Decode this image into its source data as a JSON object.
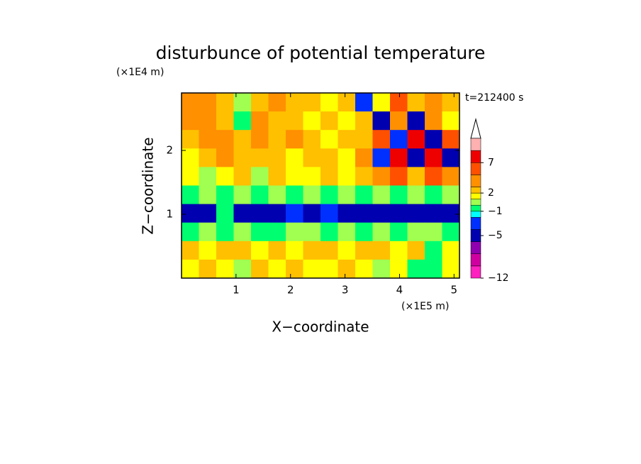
{
  "chart_data": {
    "type": "contour",
    "title": "disturbunce of potential temperature",
    "y_unit": "(×1E4 m)",
    "x_unit": "(×1E5 m)",
    "time_label": "t=212400 s",
    "xlabel": "X−coordinate",
    "ylabel": "Z−coordinate",
    "xlim": [
      0,
      5.1
    ],
    "ylim": [
      0,
      2.9
    ],
    "xticks": [
      1,
      2,
      3,
      4,
      5
    ],
    "yticks": [
      1,
      2
    ],
    "colorbar": {
      "levels": [
        -12,
        -10,
        -8,
        -6,
        -4,
        -2,
        -1,
        0,
        1,
        2,
        3,
        5,
        7,
        9,
        11
      ],
      "colors": [
        "#ff20c0",
        "#d000a0",
        "#9000b0",
        "#0000b0",
        "#0030ff",
        "#00ffff",
        "#00ff70",
        "#a0ff50",
        "#ffff00",
        "#ffc000",
        "#ff9000",
        "#ff5000",
        "#ee0000",
        "#ffb0b0"
      ],
      "ticks": [
        {
          "value": -12,
          "label": "−12"
        },
        {
          "value": -5,
          "label": "−5"
        },
        {
          "value": -1,
          "label": "−1"
        },
        2,
        7
      ]
    },
    "field": [
      [
        4,
        3,
        2,
        0,
        2,
        3,
        2,
        2,
        1,
        2,
        -4,
        1,
        5,
        2,
        4,
        2
      ],
      [
        3,
        4,
        2,
        -1,
        3,
        2,
        2,
        1,
        2,
        1,
        2,
        -5,
        4,
        -5,
        3,
        1
      ],
      [
        2,
        3,
        4,
        2,
        3,
        2,
        3,
        2,
        1,
        2,
        2,
        5,
        -4,
        7,
        -5,
        6
      ],
      [
        1,
        2,
        3,
        2,
        2,
        2,
        1,
        2,
        2,
        1,
        3,
        -3,
        7,
        -5,
        7,
        -5
      ],
      [
        1,
        0,
        1,
        2,
        0,
        2,
        1,
        1,
        2,
        1,
        2,
        3,
        5,
        2,
        5,
        3
      ],
      [
        -1,
        0,
        -1,
        0,
        -1,
        0,
        -1,
        0,
        -1,
        0,
        -1,
        0,
        -1,
        0,
        -1,
        0
      ],
      [
        -5,
        -5,
        -1,
        -5,
        -5,
        -5,
        -3,
        -5,
        -3,
        -5,
        -5,
        -5,
        -5,
        -5,
        -5,
        -5
      ],
      [
        -1,
        0,
        -1,
        0,
        -1,
        -1,
        0,
        0,
        -1,
        0,
        -1,
        0,
        -1,
        0,
        0,
        -1
      ],
      [
        2,
        1,
        2,
        2,
        1,
        2,
        1,
        2,
        2,
        1,
        2,
        2,
        1,
        2,
        -1,
        1
      ],
      [
        1,
        2,
        1,
        0,
        2,
        1,
        2,
        1,
        1,
        2,
        1,
        0,
        1,
        -1,
        -1,
        1
      ]
    ]
  }
}
